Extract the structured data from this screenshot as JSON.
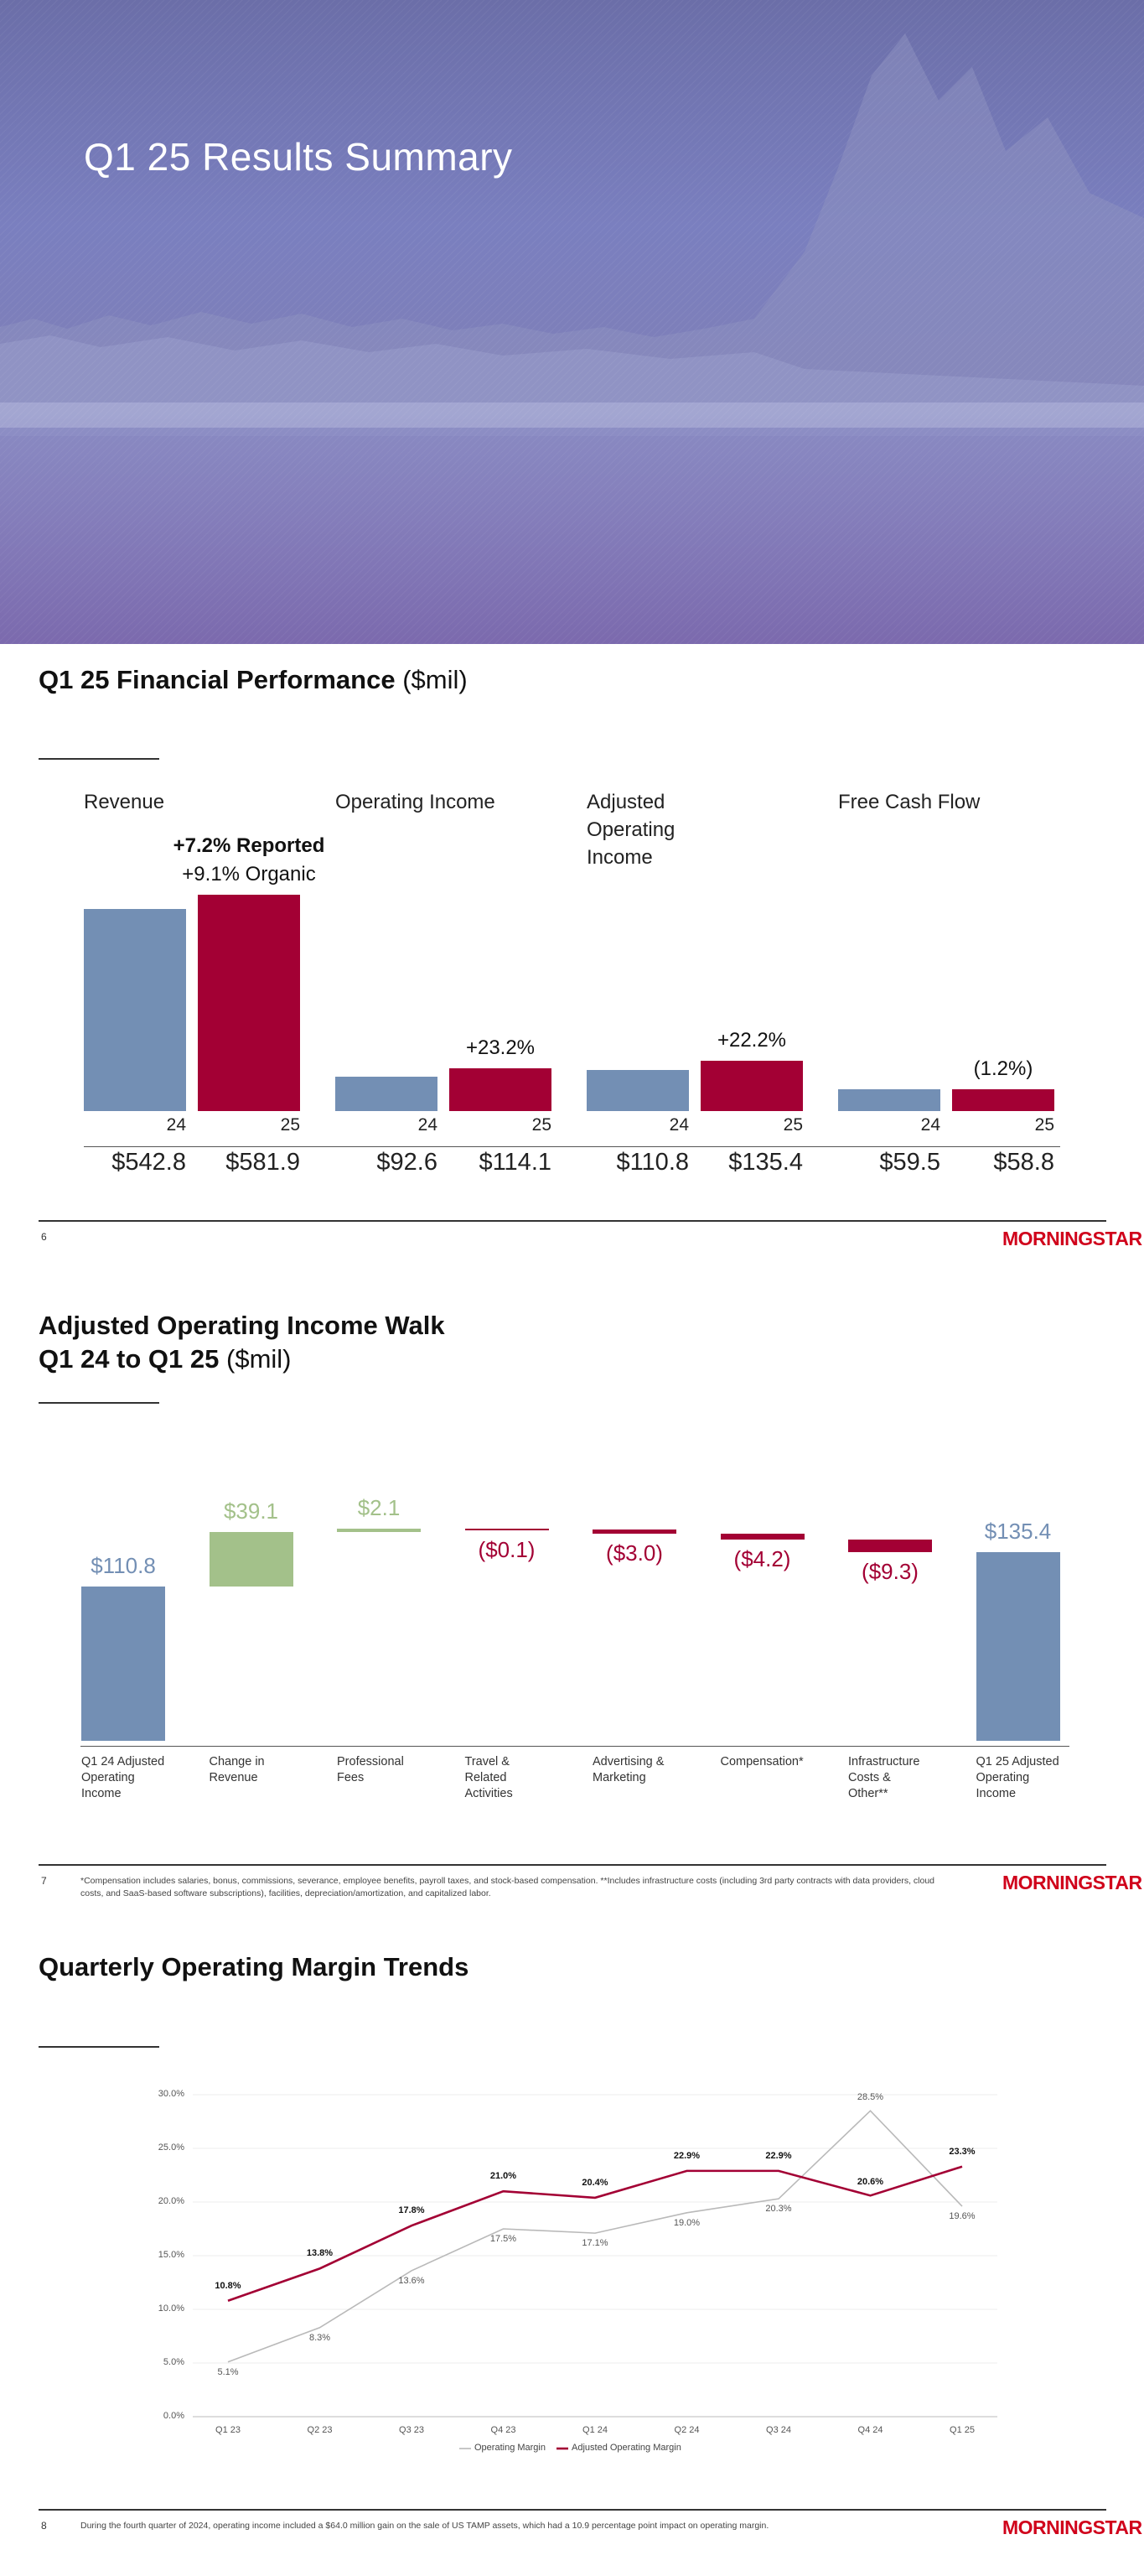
{
  "hero": {
    "title": "Q1 25 Results Summary"
  },
  "colors": {
    "blue": "#738fb4",
    "red": "#a30034",
    "green": "#a3c18a",
    "gray_line": "#b9b9b9",
    "brand_red": "#d0021b"
  },
  "logo": "MORNINGSTAR",
  "slide1": {
    "title": "Q1 25 Financial Performance",
    "unit": "($mil)",
    "metrics": [
      {
        "label": "Revenue",
        "growth_bold": "+7.2% Reported",
        "growth": "+9.1% Organic",
        "year_prev": "24",
        "year_curr": "25",
        "value_prev": "$542.8",
        "value_curr": "$581.9",
        "num_prev": 542.8,
        "num_curr": 581.9
      },
      {
        "label": "Operating Income",
        "growth": "+23.2%",
        "year_prev": "24",
        "year_curr": "25",
        "value_prev": "$92.6",
        "value_curr": "$114.1",
        "num_prev": 92.6,
        "num_curr": 114.1
      },
      {
        "label": "Adjusted Operating Income",
        "growth": "+22.2%",
        "year_prev": "24",
        "year_curr": "25",
        "value_prev": "$110.8",
        "value_curr": "$135.4",
        "num_prev": 110.8,
        "num_curr": 135.4
      },
      {
        "label": "Free Cash Flow",
        "growth": "(1.2%)",
        "year_prev": "24",
        "year_curr": "25",
        "value_prev": "$59.5",
        "value_curr": "$58.8",
        "num_prev": 59.5,
        "num_curr": 58.8
      }
    ],
    "page_number": "6"
  },
  "slide2": {
    "title_line1": "Adjusted Operating Income Walk",
    "title_line2": "Q1 24 to Q1 25",
    "unit": "($mil)",
    "page_number": "7",
    "footnote": "*Compensation includes salaries, bonus, commissions, severance, employee benefits, payroll taxes, and stock-based compensation. **Includes infrastructure costs (including 3rd party contracts with data providers, cloud costs, and SaaS-based software subscriptions), facilities, depreciation/amortization, and capitalized labor.",
    "steps": [
      {
        "category": "Q1 24 Adjusted Operating Income",
        "label": "$110.8",
        "value": 110.8,
        "kind": "total"
      },
      {
        "category": "Change in Revenue",
        "label": "$39.1",
        "value": 39.1,
        "kind": "increase"
      },
      {
        "category": "Professional Fees",
        "label": "$2.1",
        "value": 2.1,
        "kind": "increase"
      },
      {
        "category": "Travel & Related Activities",
        "label": "($0.1)",
        "value": -0.1,
        "kind": "decrease"
      },
      {
        "category": "Advertising & Marketing",
        "label": "($3.0)",
        "value": -3.0,
        "kind": "decrease"
      },
      {
        "category": "Compensation*",
        "label": "($4.2)",
        "value": -4.2,
        "kind": "decrease"
      },
      {
        "category": "Infrastructure Costs & Other**",
        "label": "($9.3)",
        "value": -9.3,
        "kind": "decrease"
      },
      {
        "category": "Q1 25 Adjusted Operating Income",
        "label": "$135.4",
        "value": 135.4,
        "kind": "total"
      }
    ]
  },
  "slide3": {
    "title": "Quarterly Operating Margin Trends",
    "page_number": "8",
    "footnote": "During the fourth quarter of 2024, operating income included a $64.0 million gain on the sale of US TAMP assets, which had a 10.9 percentage point impact on operating margin."
  },
  "chart_data": [
    {
      "type": "bar",
      "title": "Q1 25 Financial Performance ($mil)",
      "categories": [
        "Revenue",
        "Operating Income",
        "Adjusted Operating Income",
        "Free Cash Flow"
      ],
      "series": [
        {
          "name": "24",
          "values": [
            542.8,
            92.6,
            110.8,
            59.5
          ]
        },
        {
          "name": "25",
          "values": [
            581.9,
            114.1,
            135.4,
            58.8
          ]
        }
      ],
      "annotations": [
        "+7.2% Reported",
        "+9.1% Organic",
        "+23.2%",
        "+22.2%",
        "(1.2%)"
      ]
    },
    {
      "type": "bar",
      "subtype": "waterfall",
      "title": "Adjusted Operating Income Walk Q1 24 to Q1 25 ($mil)",
      "categories": [
        "Q1 24 Adjusted Operating Income",
        "Change in Revenue",
        "Professional Fees",
        "Travel & Related Activities",
        "Advertising & Marketing",
        "Compensation*",
        "Infrastructure Costs & Other**",
        "Q1 25 Adjusted Operating Income"
      ],
      "values": [
        110.8,
        39.1,
        2.1,
        -0.1,
        -3.0,
        -4.2,
        -9.3,
        135.4
      ]
    },
    {
      "type": "line",
      "title": "Quarterly Operating Margin Trends",
      "x": [
        "Q1 23",
        "Q2 23",
        "Q3 23",
        "Q4 23",
        "Q1 24",
        "Q2 24",
        "Q3 24",
        "Q4 24",
        "Q1 25"
      ],
      "series": [
        {
          "name": "Operating Margin",
          "values": [
            5.1,
            8.3,
            13.6,
            17.5,
            17.1,
            19.0,
            20.3,
            28.5,
            19.6
          ],
          "labels": [
            "5.1%",
            "8.3%",
            "13.6%",
            "17.5%",
            "17.1%",
            "19.0%",
            "20.3%",
            "28.5%",
            "19.6%"
          ]
        },
        {
          "name": "Adjusted Operating Margin",
          "values": [
            10.8,
            13.8,
            17.8,
            21.0,
            20.4,
            22.9,
            22.9,
            20.6,
            23.3
          ],
          "labels": [
            "10.8%",
            "13.8%",
            "17.8%",
            "21.0%",
            "20.4%",
            "22.9%",
            "22.9%",
            "20.6%",
            "23.3%"
          ]
        }
      ],
      "ylim": [
        0,
        30
      ],
      "yticks": [
        "0.0%",
        "5.0%",
        "10.0%",
        "15.0%",
        "20.0%",
        "25.0%",
        "30.0%"
      ],
      "legend": "bottom-center",
      "grid": true
    }
  ]
}
